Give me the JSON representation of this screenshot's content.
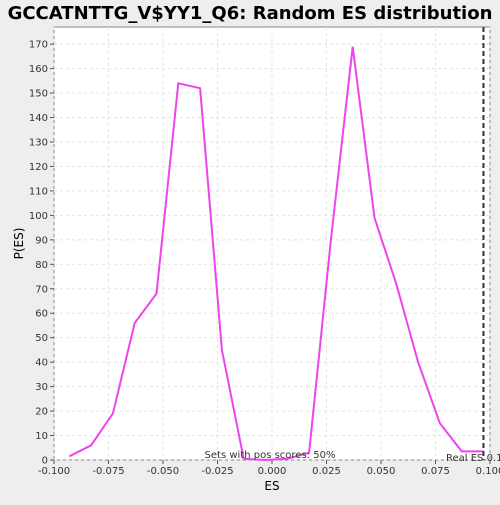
{
  "chart_data": {
    "type": "line",
    "title": "GCCATNTTG_V$YY1_Q6: Random ES distribution",
    "xlabel": "ES",
    "ylabel": "P(ES)",
    "xlim": [
      -0.1,
      0.1
    ],
    "ylim": [
      0,
      177
    ],
    "xticks": [
      "-0.100",
      "-0.075",
      "-0.050",
      "-0.025",
      "0.000",
      "0.025",
      "0.050",
      "0.075",
      "0.100"
    ],
    "xtick_values": [
      -0.1,
      -0.075,
      -0.05,
      -0.025,
      0.0,
      0.025,
      0.05,
      0.075,
      0.1
    ],
    "yticks": [
      "0",
      "10",
      "20",
      "30",
      "40",
      "50",
      "60",
      "70",
      "80",
      "90",
      "100",
      "110",
      "120",
      "130",
      "140",
      "150",
      "160",
      "170"
    ],
    "ytick_values": [
      0,
      10,
      20,
      30,
      40,
      50,
      60,
      70,
      80,
      90,
      100,
      110,
      120,
      130,
      140,
      150,
      160,
      170
    ],
    "grid": true,
    "series": [
      {
        "color": "#ee44ee",
        "x": [
          -0.093,
          -0.083,
          -0.073,
          -0.063,
          -0.053,
          -0.043,
          -0.033,
          -0.023,
          -0.013,
          -0.003,
          0.007,
          0.017,
          0.027,
          0.037,
          0.047,
          0.057,
          0.067,
          0.077,
          0.087,
          0.097
        ],
        "y": [
          1.5,
          6,
          19,
          56,
          68,
          154,
          152,
          45,
          0.5,
          0,
          0.5,
          3,
          90,
          169,
          99,
          72,
          40,
          15,
          3.5,
          3.5
        ]
      }
    ],
    "annotations": {
      "pos_scores": "Sets with pos scores: 50%",
      "real_es": "Real ES 0.1",
      "real_es_value": 0.097
    }
  }
}
